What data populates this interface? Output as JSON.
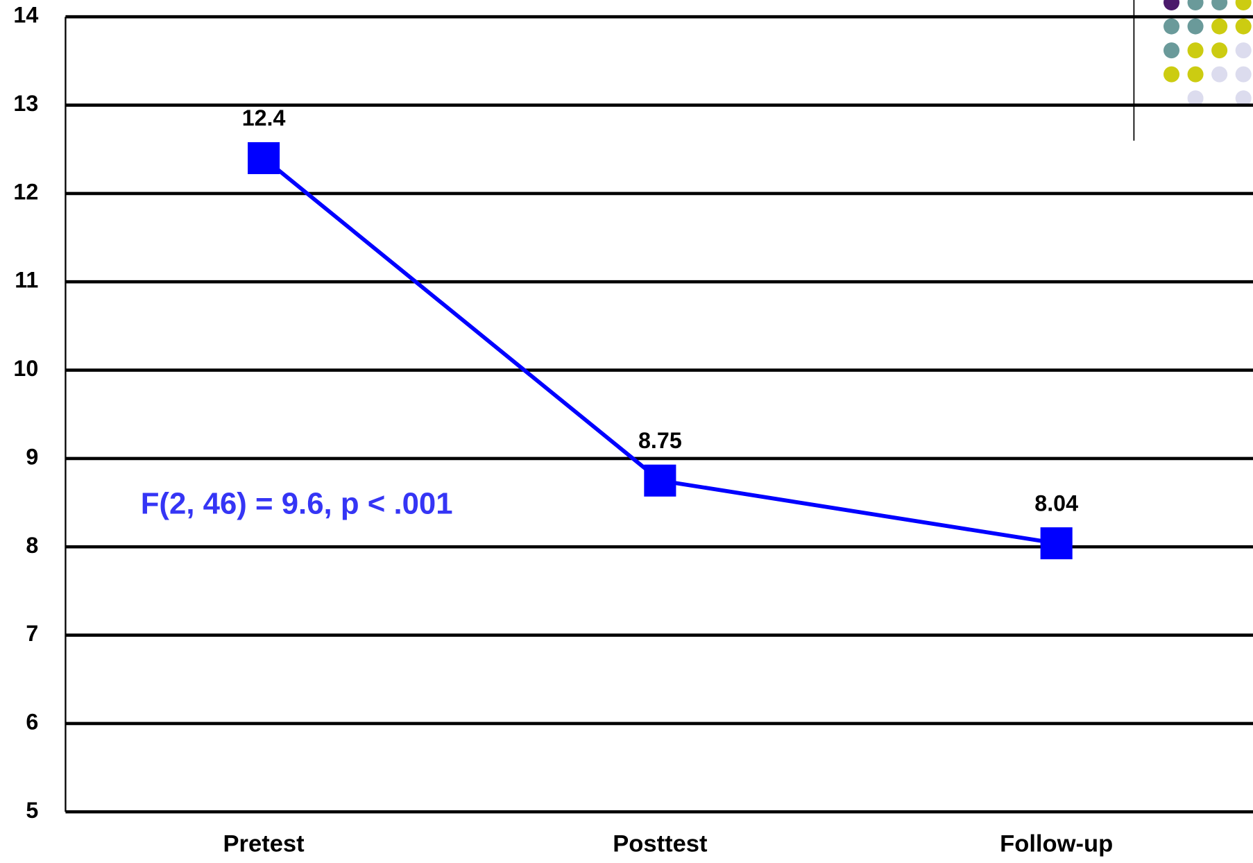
{
  "chart_data": {
    "type": "line",
    "categories": [
      "Pretest",
      "Posttest",
      "Follow-up"
    ],
    "values": [
      12.4,
      8.75,
      8.04
    ],
    "color": "#0000ff",
    "annotation": "F(2, 46) = 9.6, p < .001",
    "annotation_color": "#3535f5",
    "ylim": [
      5,
      14
    ],
    "yticks": [
      5,
      6,
      7,
      8,
      9,
      10,
      11,
      12,
      13,
      14
    ],
    "grid": true
  }
}
